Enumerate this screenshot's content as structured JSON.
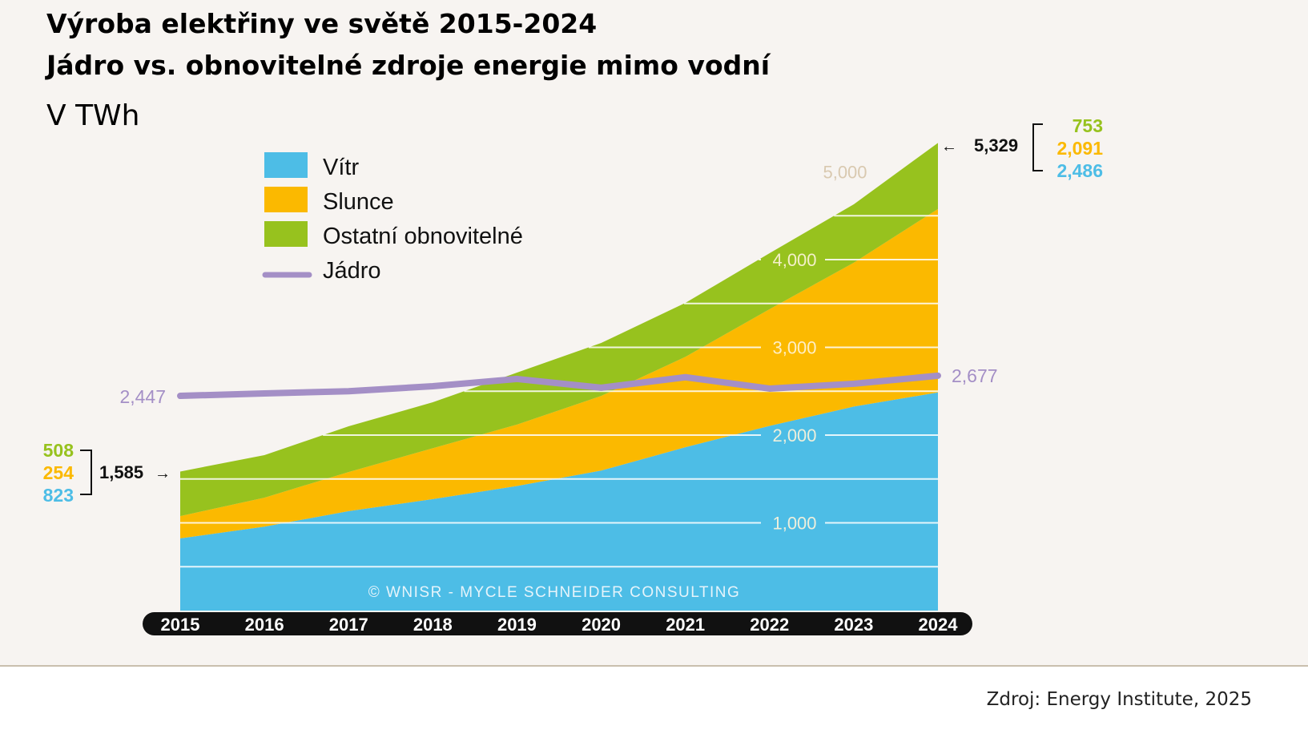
{
  "title_line1": "Výroba elektřiny ve světě 2015-2024",
  "title_line2": "Jádro vs. obnovitelné zdroje energie mimo vodní",
  "unit": "V TWh",
  "source": "Zdroj: Energy Institute, 2025",
  "watermark": "© WNISR - Mycle Schneider Consulting",
  "chart_data": {
    "type": "area",
    "stacked": true,
    "categories": [
      "2015",
      "2016",
      "2017",
      "2018",
      "2019",
      "2020",
      "2021",
      "2022",
      "2023",
      "2024"
    ],
    "series": [
      {
        "name": "Vítr",
        "color": "#4dbde6",
        "values": [
          823,
          957,
          1134,
          1270,
          1420,
          1596,
          1862,
          2105,
          2325,
          2486
        ]
      },
      {
        "name": "Slunce",
        "color": "#fbb900",
        "values": [
          254,
          330,
          445,
          580,
          700,
          850,
          1030,
          1330,
          1640,
          2091
        ]
      },
      {
        "name": "Ostatní obnovitelné",
        "color": "#97c21e",
        "values": [
          508,
          485,
          521,
          524,
          592,
          604,
          615,
          638,
          665,
          753
        ]
      },
      {
        "name": "Jádro",
        "type": "line",
        "color": "#a48fc6",
        "values": [
          2447,
          2475,
          2500,
          2557,
          2640,
          2540,
          2660,
          2530,
          2585,
          2677
        ]
      }
    ],
    "yticks": [
      1000,
      2000,
      3000,
      4000,
      5000
    ],
    "ytick_labels": [
      "1,000",
      "2,000",
      "3,000",
      "4,000",
      "5,000"
    ],
    "ylim": [
      0,
      5500
    ],
    "grid": true,
    "legend": "top-left",
    "annotations": {
      "start": {
        "total": "1,585",
        "other": "508",
        "solar": "254",
        "wind": "823",
        "nuclear": "2,447"
      },
      "end": {
        "total": "5,329",
        "other": "753",
        "solar": "2,091",
        "wind": "2,486",
        "nuclear": "2,677"
      }
    }
  }
}
